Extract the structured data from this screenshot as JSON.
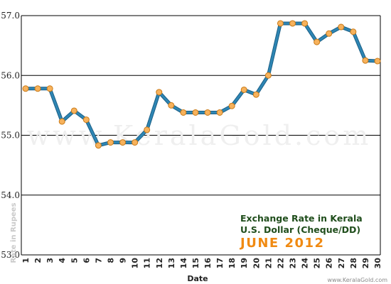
{
  "chart_data": {
    "type": "line",
    "title": "Exchange Rate in Kerala",
    "subtitle": "U.S. Dollar (Cheque/DD)",
    "period": "JUNE 2012",
    "xlabel": "Date",
    "ylabel": "Rate in Rupees",
    "ylim": [
      53.0,
      57.0
    ],
    "yticks": [
      "53.0",
      "54.0",
      "55.0",
      "56.0",
      "57.0"
    ],
    "categories": [
      "1",
      "2",
      "3",
      "4",
      "5",
      "6",
      "7",
      "8",
      "9",
      "10",
      "11",
      "12",
      "13",
      "14",
      "15",
      "16",
      "17",
      "18",
      "19",
      "20",
      "21",
      "22",
      "23",
      "24",
      "25",
      "26",
      "27",
      "28",
      "29",
      "30"
    ],
    "values": [
      55.78,
      55.78,
      55.78,
      55.23,
      55.41,
      55.26,
      54.83,
      54.88,
      54.88,
      54.88,
      55.09,
      55.72,
      55.5,
      55.38,
      55.38,
      55.38,
      55.38,
      55.49,
      55.76,
      55.68,
      56.0,
      56.87,
      56.87,
      56.87,
      56.56,
      56.7,
      56.81,
      56.73,
      56.25,
      56.24
    ],
    "grid": true,
    "colors": {
      "line": "#2e86b4",
      "marker_fill": "#f7b25c",
      "marker_stroke": "#c97a17",
      "gridline": "#000000"
    }
  },
  "watermark": "www.KeralaGold.com",
  "credit": "www.KeralaGold.com"
}
